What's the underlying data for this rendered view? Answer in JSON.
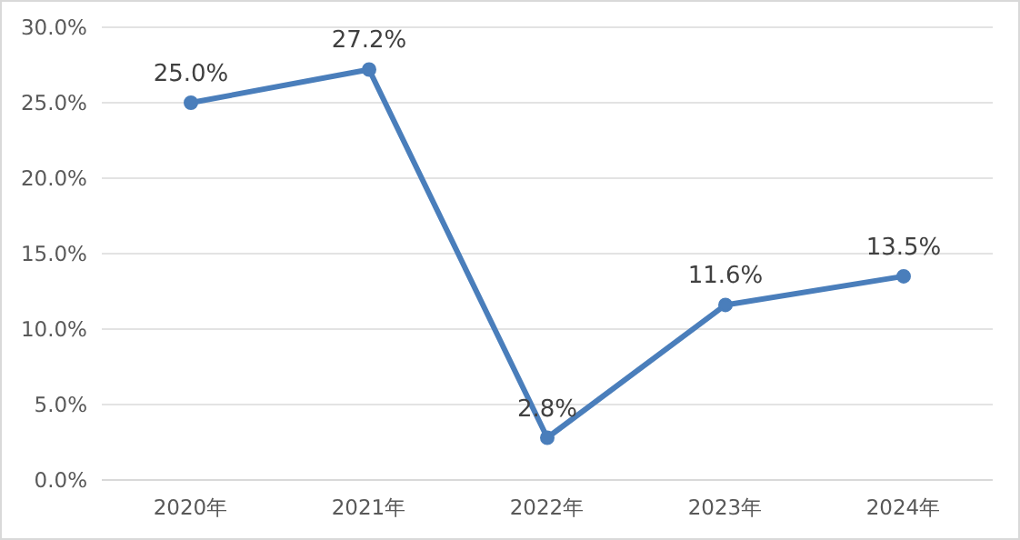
{
  "chart_data": {
    "type": "line",
    "categories": [
      "2020年",
      "2021年",
      "2022年",
      "2023年",
      "2024年"
    ],
    "values": [
      25.0,
      27.2,
      2.8,
      11.6,
      13.5
    ],
    "value_labels": [
      "25.0%",
      "27.2%",
      "2.8%",
      "11.6%",
      "13.5%"
    ],
    "color": "#4a7ebb",
    "ylim": [
      0,
      30
    ],
    "yticks": [
      {
        "value": 0,
        "label": "0.0%"
      },
      {
        "value": 5,
        "label": "5.0%"
      },
      {
        "value": 10,
        "label": "10.0%"
      },
      {
        "value": 15,
        "label": "15.0%"
      },
      {
        "value": 20,
        "label": "20.0%"
      },
      {
        "value": 25,
        "label": "25.0%"
      },
      {
        "value": 30,
        "label": "30.0%"
      }
    ],
    "grid": "y",
    "marker": "circle",
    "line_style": "solid"
  }
}
